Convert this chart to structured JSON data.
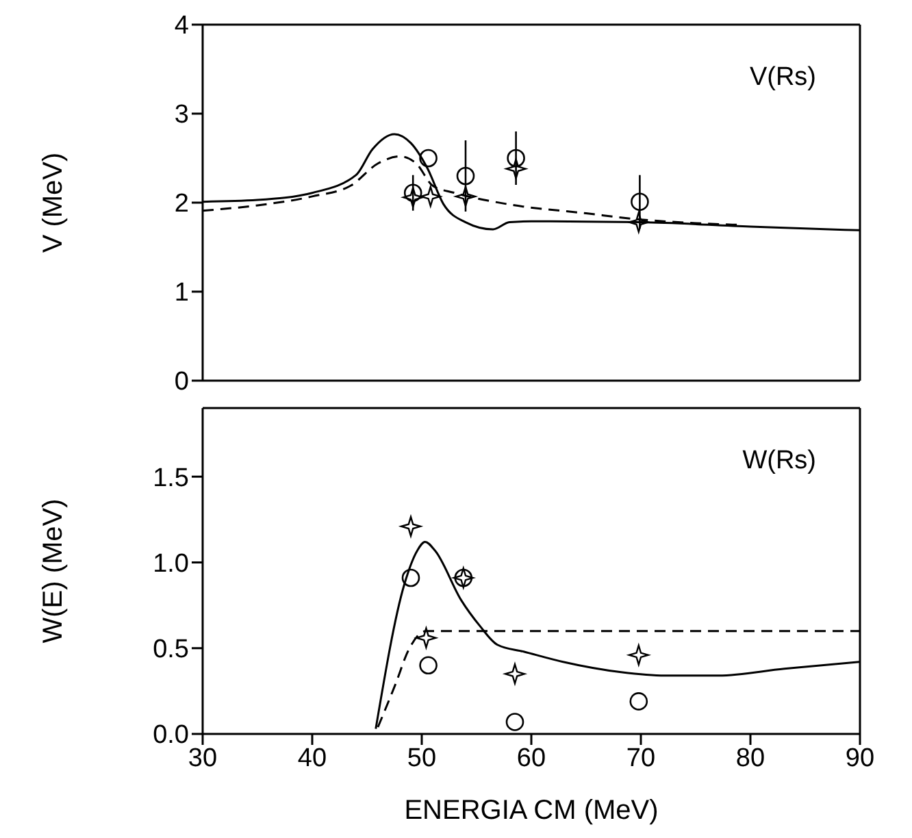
{
  "chart_data": [
    {
      "type": "line",
      "ylabel": "V (MeV)",
      "annotations": [
        "V(Rs)"
      ],
      "xlim": [
        30,
        90
      ],
      "ylim": [
        0,
        4
      ],
      "xticks": [
        30,
        40,
        50,
        60,
        70,
        80,
        90
      ],
      "yticks": [
        0,
        1,
        2,
        3,
        4
      ],
      "tick_labels": "y",
      "series": [
        {
          "color": "#000000",
          "line_style": "solid",
          "marker": "none",
          "x": [
            30,
            35,
            40,
            44,
            45.5,
            47.5,
            49,
            50.5,
            52,
            54,
            56.5,
            58,
            60,
            70,
            80,
            90
          ],
          "values": [
            2.01,
            2.03,
            2.11,
            2.31,
            2.6,
            2.77,
            2.67,
            2.39,
            1.98,
            1.78,
            1.7,
            1.78,
            1.79,
            1.78,
            1.73,
            1.69
          ]
        },
        {
          "color": "#000000",
          "line_style": "dashed",
          "marker": "none",
          "x": [
            30,
            35,
            40,
            43.5,
            46,
            48,
            49.5,
            51,
            53,
            58,
            65,
            70,
            75,
            79
          ],
          "values": [
            1.91,
            1.97,
            2.07,
            2.19,
            2.44,
            2.52,
            2.44,
            2.19,
            2.11,
            1.98,
            1.88,
            1.81,
            1.77,
            1.75
          ]
        },
        {
          "type": "scatter",
          "color": "#000000",
          "marker": "circle",
          "x": [
            49.2,
            50.6,
            54.0,
            58.6,
            69.9
          ],
          "values": [
            2.11,
            2.5,
            2.3,
            2.5,
            2.01
          ],
          "errors": [
            0.2,
            null,
            0.4,
            0.3,
            0.3
          ]
        },
        {
          "type": "scatter",
          "color": "#000000",
          "marker": "star",
          "x": [
            49.2,
            50.8,
            54.0,
            58.6,
            69.8
          ],
          "values": [
            2.06,
            2.07,
            2.07,
            2.38,
            1.78
          ]
        }
      ]
    },
    {
      "type": "line",
      "xlabel": "ENERGIA CM (MeV)",
      "ylabel": "W(E) (MeV)",
      "annotations": [
        "W(Rs)"
      ],
      "xlim": [
        30,
        90
      ],
      "ylim": [
        0,
        1.9
      ],
      "xticks": [
        30,
        40,
        50,
        60,
        70,
        80,
        90
      ],
      "yticks": [
        {
          "value": 0,
          "label": "0.0"
        },
        {
          "value": 0.5,
          "label": "0.5"
        },
        {
          "value": 1,
          "label": "1.0"
        },
        {
          "value": 1.5,
          "label": "1.5"
        }
      ],
      "series": [
        {
          "color": "#000000",
          "line_style": "solid",
          "marker": "none",
          "x": [
            45.8,
            48.4,
            49.6,
            50.3,
            51.2,
            53.6,
            55.3,
            56.9,
            59.3,
            62.9,
            68.2,
            72.2,
            77.1,
            83.1,
            90
          ],
          "values": [
            0.03,
            0.87,
            1.07,
            1.12,
            1.07,
            0.78,
            0.63,
            0.52,
            0.48,
            0.42,
            0.36,
            0.34,
            0.34,
            0.38,
            0.42
          ]
        },
        {
          "color": "#000000",
          "line_style": "dashed",
          "marker": "none",
          "x": [
            46,
            47.6,
            48.8,
            50.4,
            52.8,
            90
          ],
          "values": [
            0.04,
            0.29,
            0.49,
            0.6,
            0.6,
            0.6
          ]
        },
        {
          "type": "scatter",
          "color": "#000000",
          "marker": "circle",
          "x": [
            49.0,
            50.6,
            53.8,
            58.5,
            69.8
          ],
          "values": [
            0.91,
            0.4,
            0.91,
            0.07,
            0.19
          ]
        },
        {
          "type": "scatter",
          "color": "#000000",
          "marker": "star",
          "x": [
            49.0,
            50.4,
            53.8,
            58.5,
            69.8
          ],
          "values": [
            1.21,
            0.56,
            0.91,
            0.35,
            0.46
          ]
        }
      ]
    }
  ]
}
